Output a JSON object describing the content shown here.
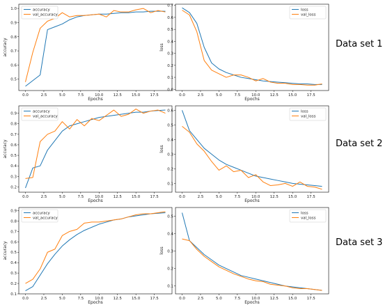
{
  "xlabel": "Epochs",
  "xticks": [
    "0.0",
    "2.5",
    "5.0",
    "7.5",
    "10.0",
    "12.5",
    "15.0",
    "17.5"
  ],
  "colors": {
    "train": "#1f77b4",
    "val": "#ff7f0e"
  },
  "row_labels": [
    "Data set 1",
    "Data set 2",
    "Data set 3"
  ],
  "chart_data": [
    {
      "type": "line",
      "ylabel": "accuracy",
      "ylim": [
        0.42,
        1.03
      ],
      "yticks": [
        "0.5",
        "0.6",
        "0.7",
        "0.8",
        "0.9",
        "1.0"
      ],
      "xlim": [
        -0.9,
        19.9
      ],
      "legend_position": "top-left",
      "series": [
        {
          "name": "accuracy",
          "values": [
            0.45,
            0.49,
            0.53,
            0.85,
            0.87,
            0.89,
            0.92,
            0.94,
            0.95,
            0.955,
            0.96,
            0.96,
            0.965,
            0.97,
            0.97,
            0.975,
            0.975,
            0.98,
            0.98,
            0.98
          ]
        },
        {
          "name": "val_accuracy",
          "values": [
            0.48,
            0.69,
            0.86,
            0.91,
            0.93,
            0.97,
            0.94,
            0.95,
            0.95,
            0.955,
            0.96,
            0.94,
            0.985,
            0.975,
            0.975,
            0.99,
            1.0,
            0.97,
            0.985,
            0.975
          ]
        }
      ]
    },
    {
      "type": "line",
      "ylabel": "loss",
      "ylim": [
        -0.01,
        0.71
      ],
      "yticks": [
        "0.0",
        "0.1",
        "0.2",
        "0.3",
        "0.4",
        "0.5",
        "0.6",
        "0.7"
      ],
      "xlim": [
        -0.9,
        19.9
      ],
      "legend_position": "top-right",
      "series": [
        {
          "name": "loss",
          "values": [
            0.68,
            0.64,
            0.55,
            0.35,
            0.22,
            0.17,
            0.14,
            0.12,
            0.1,
            0.09,
            0.08,
            0.07,
            0.065,
            0.06,
            0.055,
            0.05,
            0.045,
            0.045,
            0.04,
            0.04
          ]
        },
        {
          "name": "val_loss",
          "values": [
            0.66,
            0.62,
            0.48,
            0.24,
            0.16,
            0.13,
            0.1,
            0.12,
            0.12,
            0.1,
            0.07,
            0.09,
            0.06,
            0.05,
            0.05,
            0.04,
            0.04,
            0.035,
            0.035,
            0.045
          ]
        }
      ]
    },
    {
      "type": "line",
      "ylabel": "accuracy",
      "ylim": [
        0.15,
        0.97
      ],
      "yticks": [
        "0.2",
        "0.3",
        "0.4",
        "0.5",
        "0.6",
        "0.7",
        "0.8",
        "0.9"
      ],
      "xlim": [
        -0.9,
        19.9
      ],
      "legend_position": "top-left",
      "series": [
        {
          "name": "accuracy",
          "values": [
            0.19,
            0.38,
            0.4,
            0.55,
            0.64,
            0.73,
            0.78,
            0.8,
            0.82,
            0.84,
            0.86,
            0.87,
            0.88,
            0.89,
            0.9,
            0.91,
            0.91,
            0.92,
            0.925,
            0.93
          ]
        },
        {
          "name": "val_accuracy",
          "values": [
            0.28,
            0.29,
            0.63,
            0.7,
            0.73,
            0.82,
            0.75,
            0.84,
            0.78,
            0.85,
            0.83,
            0.88,
            0.93,
            0.87,
            0.89,
            0.94,
            0.9,
            0.92,
            0.93,
            0.9
          ]
        }
      ]
    },
    {
      "type": "line",
      "ylabel": "loss",
      "ylim": [
        0.04,
        0.63
      ],
      "yticks": [
        "0.1",
        "0.2",
        "0.3",
        "0.4",
        "0.5",
        "0.6"
      ],
      "xlim": [
        -0.9,
        19.9
      ],
      "legend_position": "top-right",
      "series": [
        {
          "name": "loss",
          "values": [
            0.6,
            0.46,
            0.4,
            0.34,
            0.3,
            0.26,
            0.23,
            0.21,
            0.19,
            0.17,
            0.15,
            0.14,
            0.13,
            0.12,
            0.11,
            0.1,
            0.095,
            0.09,
            0.085,
            0.08
          ]
        },
        {
          "name": "val_loss",
          "values": [
            0.49,
            0.45,
            0.37,
            0.32,
            0.25,
            0.19,
            0.22,
            0.18,
            0.19,
            0.14,
            0.16,
            0.11,
            0.085,
            0.09,
            0.1,
            0.08,
            0.11,
            0.08,
            0.075,
            0.06
          ]
        }
      ]
    },
    {
      "type": "line",
      "ylabel": "accuracy",
      "ylim": [
        0.1,
        0.93
      ],
      "yticks": [
        "0.1",
        "0.2",
        "0.3",
        "0.4",
        "0.5",
        "0.6",
        "0.7",
        "0.8",
        "0.9"
      ],
      "xlim": [
        -0.9,
        19.9
      ],
      "legend_position": "top-left",
      "series": [
        {
          "name": "accuracy",
          "values": [
            0.13,
            0.17,
            0.28,
            0.39,
            0.48,
            0.56,
            0.62,
            0.67,
            0.71,
            0.74,
            0.77,
            0.79,
            0.81,
            0.82,
            0.84,
            0.85,
            0.86,
            0.87,
            0.875,
            0.88
          ]
        },
        {
          "name": "val_accuracy",
          "values": [
            0.2,
            0.24,
            0.34,
            0.5,
            0.53,
            0.66,
            0.7,
            0.72,
            0.78,
            0.79,
            0.79,
            0.8,
            0.81,
            0.82,
            0.84,
            0.86,
            0.87,
            0.87,
            0.88,
            0.89
          ]
        }
      ]
    },
    {
      "type": "line",
      "ylabel": "loss",
      "ylim": [
        0.055,
        0.55
      ],
      "yticks": [
        "0.1",
        "0.2",
        "0.3",
        "0.4",
        "0.5"
      ],
      "xlim": [
        -0.9,
        19.9
      ],
      "legend_position": "top-right",
      "series": [
        {
          "name": "loss",
          "values": [
            0.52,
            0.36,
            0.32,
            0.28,
            0.25,
            0.22,
            0.2,
            0.18,
            0.16,
            0.15,
            0.14,
            0.13,
            0.12,
            0.11,
            0.1,
            0.095,
            0.09,
            0.085,
            0.08,
            0.075
          ]
        },
        {
          "name": "val_loss",
          "values": [
            0.37,
            0.36,
            0.31,
            0.27,
            0.24,
            0.21,
            0.19,
            0.17,
            0.155,
            0.14,
            0.13,
            0.125,
            0.11,
            0.105,
            0.1,
            0.09,
            0.085,
            0.085,
            0.08,
            0.075
          ]
        }
      ]
    }
  ]
}
